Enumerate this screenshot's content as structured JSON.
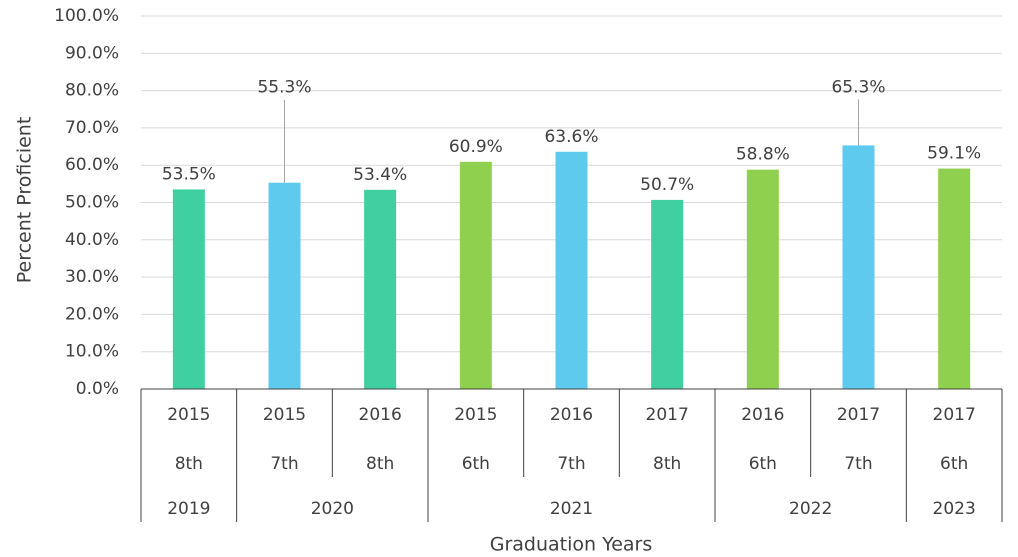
{
  "chart_data": {
    "type": "bar",
    "y_axis_label": "Percent Proficient",
    "x_axis_label": "Graduation Years",
    "categories": [
      "2015",
      "2015",
      "2016",
      "2015",
      "2016",
      "2017",
      "2016",
      "2017",
      "2017"
    ],
    "grades": [
      "8th",
      "7th",
      "8th",
      "6th",
      "7th",
      "8th",
      "6th",
      "7th",
      "6th"
    ],
    "graduation_years": [
      "2019",
      "2020",
      null,
      "2021",
      null,
      null,
      "2022",
      null,
      "2023"
    ],
    "values": [
      53.5,
      55.3,
      53.4,
      60.9,
      63.6,
      50.7,
      58.8,
      65.3,
      59.1
    ],
    "value_labels": [
      "53.5%",
      "55.3%",
      "53.4%",
      "60.9%",
      "63.6%",
      "50.7%",
      "58.8%",
      "65.3%",
      "59.1%"
    ],
    "colors": [
      "#3fcfa0",
      "#5dcaee",
      "#3fcfa0",
      "#8fd14f",
      "#5dcaee",
      "#3fcfa0",
      "#8fd14f",
      "#5dcaee",
      "#8fd14f"
    ],
    "ylim": [
      0,
      100
    ],
    "yticks": [
      {
        "value": 0,
        "label": "0.0%"
      },
      {
        "value": 10,
        "label": "10.0%"
      },
      {
        "value": 20,
        "label": "20.0%"
      },
      {
        "value": 30,
        "label": "30.0%"
      },
      {
        "value": 40,
        "label": "40.0%"
      },
      {
        "value": 50,
        "label": "50.0%"
      },
      {
        "value": 60,
        "label": "60.0%"
      },
      {
        "value": 70,
        "label": "70.0%"
      },
      {
        "value": 80,
        "label": "80.0%"
      },
      {
        "value": 90,
        "label": "90.0%"
      },
      {
        "value": 100,
        "label": "100.0%"
      }
    ],
    "grid": true
  }
}
